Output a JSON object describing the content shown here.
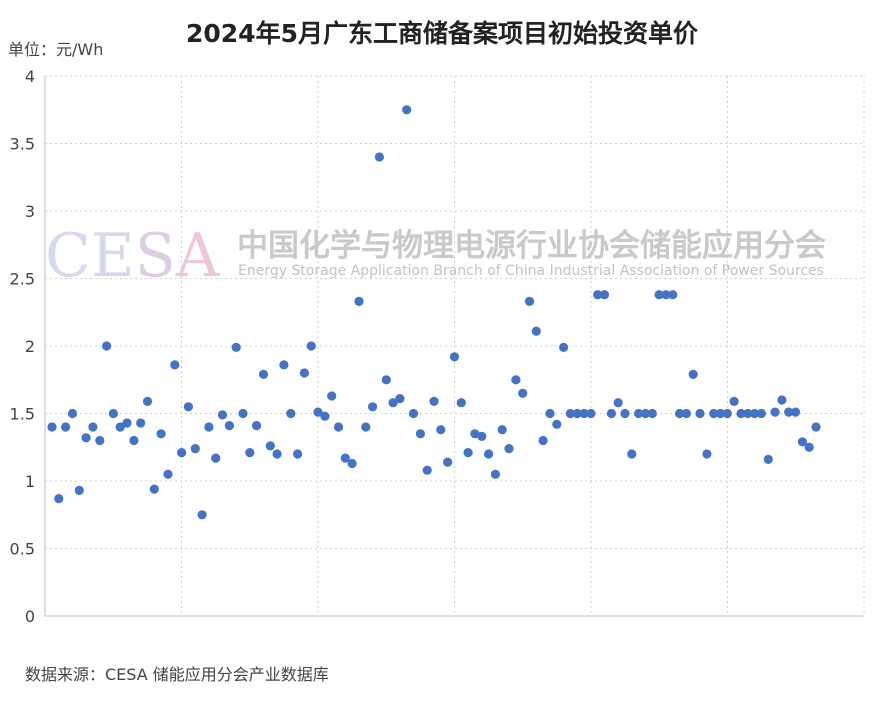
{
  "chart_data": {
    "type": "scatter",
    "title": "2024年5月广东工商储备案项目初始投资单价",
    "ylabel": "单位：元/Wh",
    "ylim": [
      0,
      4
    ],
    "yticks": [
      "0",
      "0.5",
      "1",
      "1.5",
      "2",
      "2.5",
      "3",
      "3.5",
      "4"
    ],
    "grid": true,
    "source": "数据来源：CESA 储能应用分会产业数据库",
    "series": [
      {
        "color": "#4472C4",
        "values": [
          1.4,
          0.87,
          1.4,
          1.5,
          0.93,
          1.32,
          1.4,
          1.3,
          2.0,
          1.5,
          1.4,
          1.43,
          1.3,
          1.43,
          1.59,
          0.94,
          1.35,
          1.05,
          1.86,
          1.21,
          1.55,
          1.24,
          0.75,
          1.4,
          1.17,
          1.49,
          1.41,
          1.99,
          1.5,
          1.21,
          1.41,
          1.79,
          1.26,
          1.2,
          1.86,
          1.5,
          1.2,
          1.8,
          2.0,
          1.51,
          1.48,
          1.63,
          1.4,
          1.17,
          1.13,
          2.33,
          1.4,
          1.55,
          3.4,
          1.75,
          1.58,
          1.61,
          3.75,
          1.5,
          1.35,
          1.08,
          1.59,
          1.38,
          1.14,
          1.92,
          1.58,
          1.21,
          1.35,
          1.33,
          1.2,
          1.05,
          1.38,
          1.24,
          1.75,
          1.65,
          2.33,
          2.11,
          1.3,
          1.5,
          1.42,
          1.99,
          1.5,
          1.5,
          1.5,
          1.5,
          2.38,
          2.38,
          1.5,
          1.58,
          1.5,
          1.2,
          1.5,
          1.5,
          1.5,
          2.38,
          2.38,
          2.38,
          1.5,
          1.5,
          1.79,
          1.5,
          1.2,
          1.5,
          1.5,
          1.5,
          1.59,
          1.5,
          1.5,
          1.5,
          1.5,
          1.16,
          1.51,
          1.6,
          1.51,
          1.51,
          1.29,
          1.25,
          1.4
        ]
      }
    ]
  },
  "watermark": {
    "logo": "CESA",
    "name_cn": "中国化学与物理电源行业协会储能应用分会",
    "name_en": "Energy Storage Application Branch of China Industrial Association of Power Sources"
  },
  "colors": {
    "point": "#4472C4",
    "grid": "#d0d0d0",
    "axis": "#bfbfbf"
  }
}
